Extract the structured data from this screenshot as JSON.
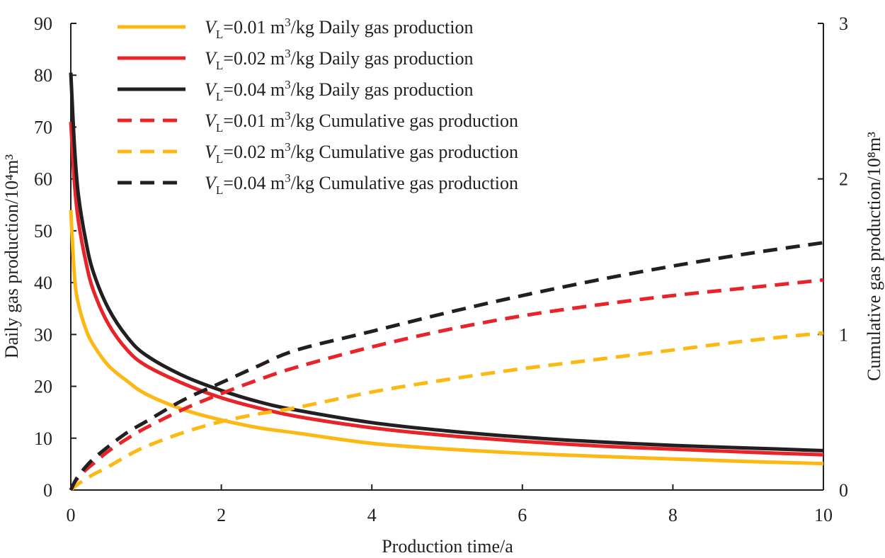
{
  "chart_data": {
    "type": "line",
    "xlabel": "Production time/a",
    "ylabel_left": "Daily gas production/10⁴m³",
    "ylabel_right": "Cumulative gas production/10⁸m³",
    "xlim": [
      0,
      10
    ],
    "ylim_left": [
      0,
      90
    ],
    "ylim_right": [
      0,
      3
    ],
    "x_ticks": [
      "0",
      "2",
      "4",
      "6",
      "8",
      "10"
    ],
    "y_left_ticks": [
      "0",
      "10",
      "20",
      "30",
      "40",
      "50",
      "60",
      "70",
      "80",
      "90"
    ],
    "y_right_ticks": [
      "0",
      "1",
      "2",
      "3"
    ],
    "grid": false,
    "legend_position": "top-left",
    "x": [
      0,
      0.05,
      0.1,
      0.2,
      0.3,
      0.5,
      0.75,
      1,
      1.5,
      2,
      2.5,
      3,
      4,
      5,
      6,
      7,
      8,
      9,
      10
    ],
    "series": [
      {
        "name": "VL=0.01 m3/kg Daily gas production",
        "axis": "left",
        "style": "solid",
        "color": "#fdb913",
        "values": [
          54,
          41,
          36,
          31,
          28,
          24,
          21,
          18.5,
          15.5,
          13.5,
          12,
          11,
          9,
          7.9,
          7.1,
          6.5,
          6,
          5.5,
          5.1
        ]
      },
      {
        "name": "VL=0.02 m3/kg Daily gas production",
        "axis": "left",
        "style": "solid",
        "color": "#e8242b",
        "values": [
          71,
          59,
          52,
          44,
          38.5,
          32,
          27,
          24,
          20.5,
          17.8,
          15.8,
          14.2,
          12,
          10.5,
          9.4,
          8.5,
          7.9,
          7.3,
          6.8
        ]
      },
      {
        "name": "VL=0.04 m3/kg Daily gas production",
        "axis": "left",
        "style": "solid",
        "color": "#231f20",
        "values": [
          80.5,
          66,
          57,
          48,
          42,
          35,
          29.5,
          26,
          22,
          19.2,
          17,
          15.4,
          13,
          11.4,
          10.2,
          9.3,
          8.6,
          8.1,
          7.6
        ]
      },
      {
        "name": "VL=0.01 m3/kg Cumulative gas production",
        "axis": "right",
        "style": "dashed",
        "color": "#e8242b",
        "values": [
          0,
          0.05,
          0.08,
          0.13,
          0.17,
          0.25,
          0.33,
          0.4,
          0.52,
          0.62,
          0.71,
          0.79,
          0.92,
          1.03,
          1.12,
          1.19,
          1.25,
          1.3,
          1.35
        ]
      },
      {
        "name": "VL=0.02 m3/kg Cumulative gas production",
        "axis": "right",
        "style": "dashed",
        "color": "#fdb913",
        "values": [
          0,
          0.02,
          0.04,
          0.07,
          0.1,
          0.15,
          0.22,
          0.28,
          0.37,
          0.44,
          0.49,
          0.53,
          0.63,
          0.71,
          0.78,
          0.84,
          0.9,
          0.96,
          1.01
        ]
      },
      {
        "name": "VL=0.04 m3/kg Cumulative gas production",
        "axis": "right",
        "style": "dashed",
        "color": "#231f20",
        "values": [
          0,
          0.05,
          0.09,
          0.15,
          0.2,
          0.28,
          0.37,
          0.44,
          0.58,
          0.69,
          0.8,
          0.9,
          1.02,
          1.14,
          1.25,
          1.35,
          1.44,
          1.52,
          1.59
        ]
      }
    ]
  },
  "legend": [
    {
      "var": "V",
      "sub": "L",
      "value": "=0.01 m",
      "sup": "3",
      "rest": "/kg Daily gas production"
    },
    {
      "var": "V",
      "sub": "L",
      "value": "=0.02 m",
      "sup": "3",
      "rest": "/kg Daily gas production"
    },
    {
      "var": "V",
      "sub": "L",
      "value": "=0.04 m",
      "sup": "3",
      "rest": "/kg Daily gas production"
    },
    {
      "var": "V",
      "sub": "L",
      "value": "=0.01 m",
      "sup": "3",
      "rest": "/kg Cumulative gas production"
    },
    {
      "var": "V",
      "sub": "L",
      "value": "=0.02 m",
      "sup": "3",
      "rest": "/kg Cumulative gas production"
    },
    {
      "var": "V",
      "sub": "L",
      "value": "=0.04 m",
      "sup": "3",
      "rest": "/kg Cumulative gas production"
    }
  ]
}
